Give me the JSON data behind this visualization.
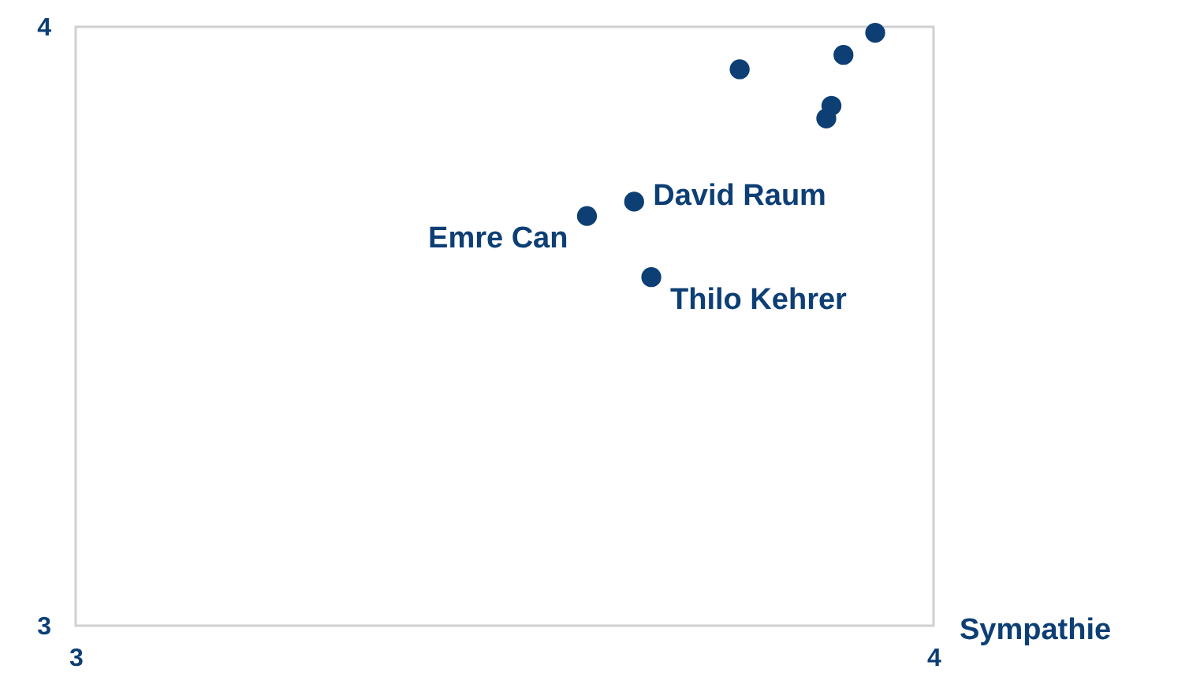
{
  "chart_data": {
    "type": "scatter",
    "xlabel": "Sympathie",
    "x": [
      3.932,
      3.895,
      3.774,
      3.881,
      3.875,
      3.651,
      3.596,
      3.671
    ],
    "series": [
      {
        "color": "#0d3f75",
        "values": [
          3.99,
          3.953,
          3.929,
          3.868,
          3.847,
          3.708,
          3.684,
          3.582
        ]
      }
    ],
    "xlim": [
      3,
      4
    ],
    "ylim": [
      3,
      4
    ],
    "xticks": [
      3,
      4
    ],
    "yticks": [
      3,
      4
    ],
    "grid": false,
    "marker": "circle",
    "annotations": [
      {
        "text": "David Raum",
        "x": 3.651,
        "y": 3.708
      },
      {
        "text": "Emre Can",
        "x": 3.596,
        "y": 3.684
      },
      {
        "text": "Thilo Kehrer",
        "x": 3.671,
        "y": 3.582
      }
    ]
  }
}
